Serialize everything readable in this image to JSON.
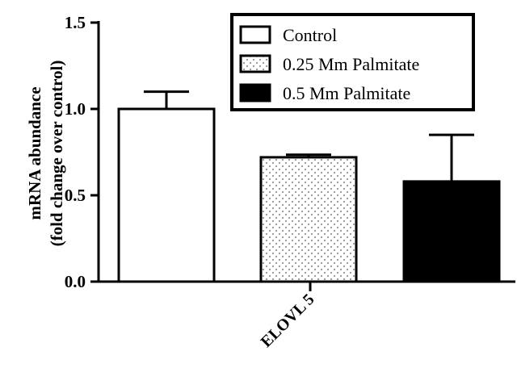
{
  "chart_data": {
    "type": "bar",
    "categories": [
      "ELOVL 5"
    ],
    "ylabel_line1": "mRNA abundance",
    "ylabel_line2": "(fold change over control)",
    "ylim": [
      0,
      1.5
    ],
    "yticks": [
      0.0,
      0.5,
      1.0,
      1.5
    ],
    "ytick_labels": [
      "0.0",
      "0.5",
      "1.0",
      "1.5"
    ],
    "grid": false,
    "legend_position": "top-right",
    "series": [
      {
        "name": "Control",
        "values": [
          1.0
        ],
        "error": [
          0.1
        ],
        "fill": "white",
        "fill_color": "#ffffff"
      },
      {
        "name": "0.25 Mm Palmitate",
        "values": [
          0.72
        ],
        "error": [
          0.015
        ],
        "fill": "dotted",
        "fill_color": "#ffffff"
      },
      {
        "name": "0.5 Mm Palmitate",
        "values": [
          0.58
        ],
        "error": [
          0.27
        ],
        "fill": "black",
        "fill_color": "#000000"
      }
    ],
    "colors": {
      "stroke": "#000000",
      "dots": "#555555"
    }
  }
}
